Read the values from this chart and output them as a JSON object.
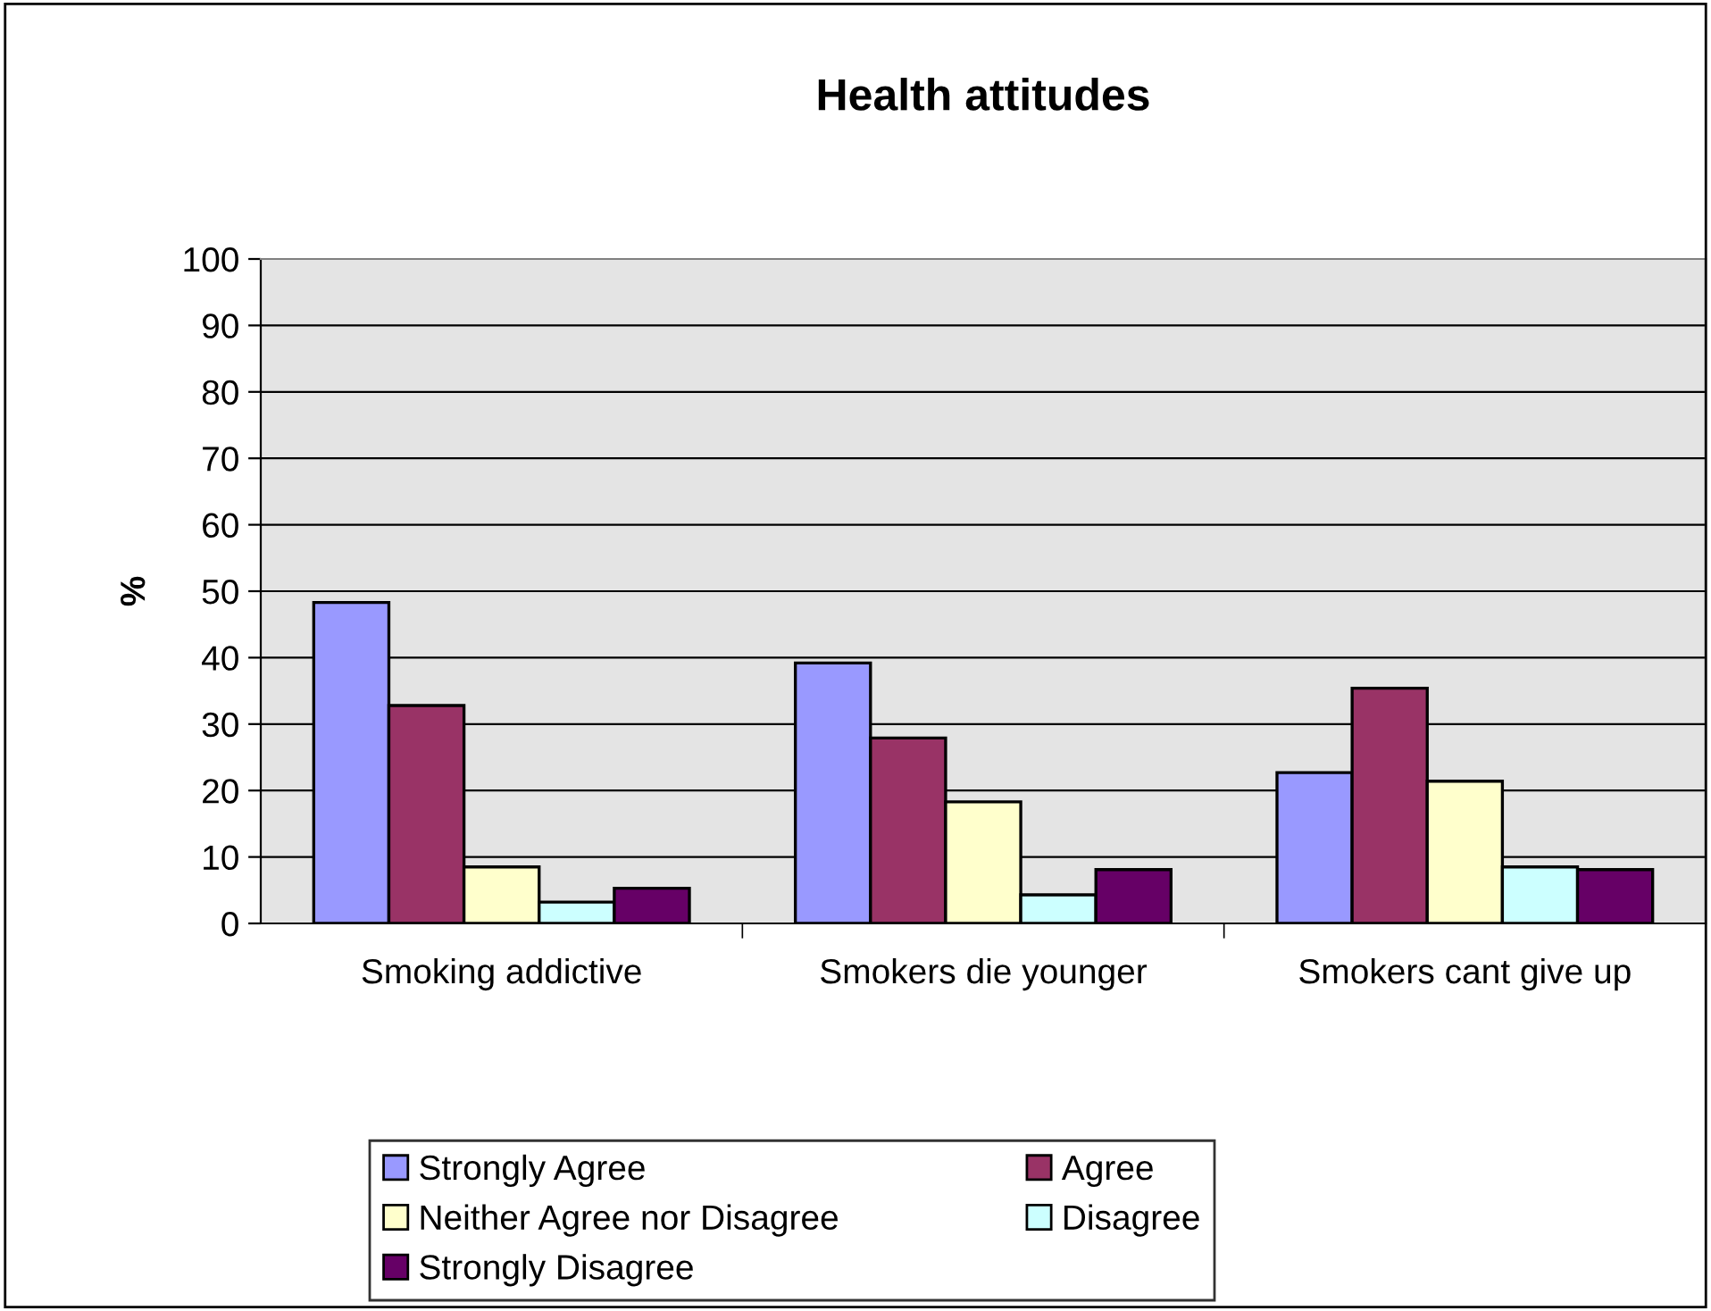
{
  "chart_data": {
    "type": "bar",
    "title": "Health attitudes",
    "ylabel": "%",
    "categories": [
      "Smoking addictive",
      "Smokers die younger",
      "Smokers cant give up"
    ],
    "series": [
      {
        "name": "Strongly Agree",
        "color": "#9999ff",
        "values": [
          48.3,
          39.2,
          22.7
        ]
      },
      {
        "name": "Agree",
        "color": "#993366",
        "values": [
          32.8,
          27.9,
          35.4
        ]
      },
      {
        "name": "Neither Agree nor Disagree",
        "color": "#ffffcc",
        "values": [
          8.5,
          18.3,
          21.4
        ]
      },
      {
        "name": "Disagree",
        "color": "#ccffff",
        "values": [
          3.2,
          4.3,
          8.5
        ]
      },
      {
        "name": "Strongly Disagree",
        "color": "#660066",
        "values": [
          5.3,
          8.1,
          8.1
        ]
      }
    ],
    "ylim": [
      0,
      100
    ],
    "yticks": [
      0,
      10,
      20,
      30,
      40,
      50,
      60,
      70,
      80,
      90,
      100
    ],
    "grid": "y",
    "legend": "bottom"
  }
}
